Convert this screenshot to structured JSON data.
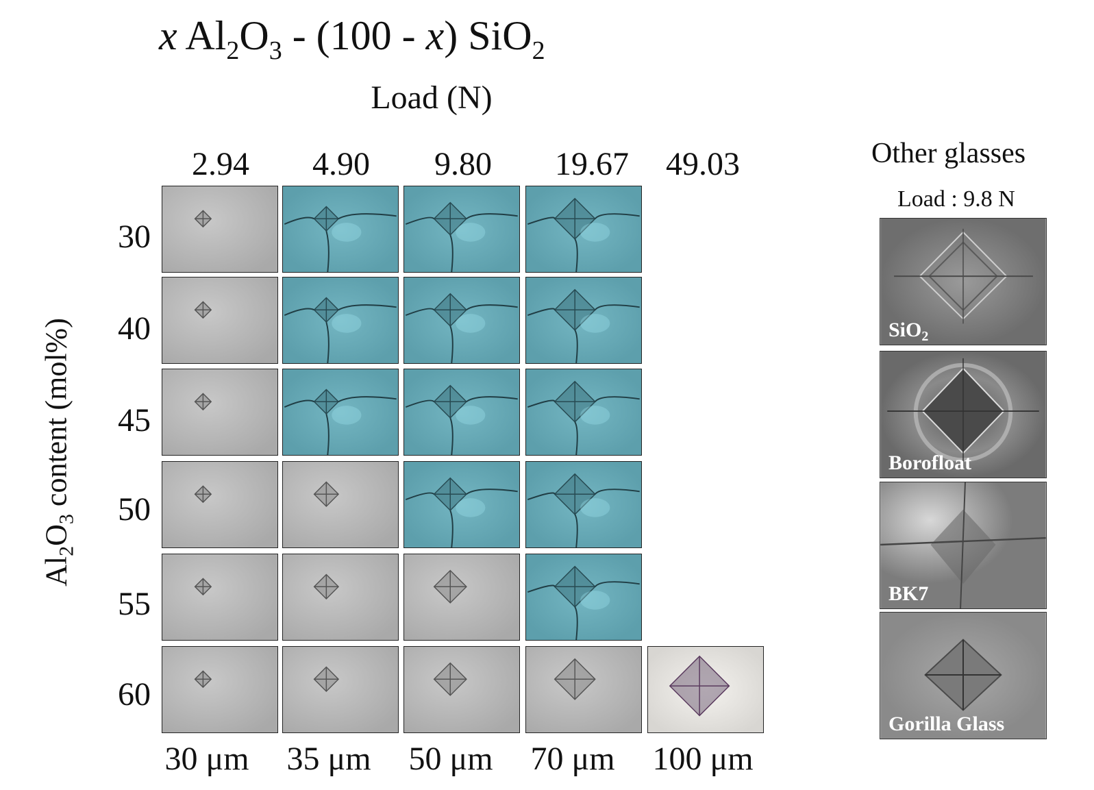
{
  "title": {
    "x": "x",
    "al": "Al",
    "al_sub": "2",
    "o": "O",
    "o_sub": "3",
    "mid": " - (100 - ",
    "x2": "x",
    "end": ") SiO",
    "end_sub": "2"
  },
  "load_axis_title": "Load (N)",
  "loads": [
    "2.94",
    "4.90",
    "9.80",
    "19.67",
    "49.03"
  ],
  "y_axis": {
    "pre": "Al",
    "sub1": "2",
    "mid": "O",
    "sub2": "3",
    "post": " content (mol%)"
  },
  "rows": [
    "30",
    "40",
    "45",
    "50",
    "55",
    "60"
  ],
  "scale_bars": [
    "30 μm",
    "35 μm",
    "50 μm",
    "70 μm",
    "100 μm"
  ],
  "colors": {
    "gray_tile": "#b5b5b5",
    "cyan_tile": "#6aabb7",
    "pale_tile": "#eeece8",
    "side_tile": "#7a7a7a"
  },
  "other": {
    "title": "Other glasses",
    "load": "Load : 9.8 N",
    "glasses": [
      {
        "name": "SiO",
        "sub": "2"
      },
      {
        "name": "Borofloat",
        "sub": ""
      },
      {
        "name": "BK7",
        "sub": ""
      },
      {
        "name": "Gorilla Glass",
        "sub": ""
      }
    ]
  },
  "tile_styles": [
    [
      "gray",
      "cyan",
      "cyan",
      "cyan",
      ""
    ],
    [
      "gray",
      "cyan",
      "cyan",
      "cyan",
      ""
    ],
    [
      "gray",
      "cyan",
      "cyan",
      "cyan",
      ""
    ],
    [
      "gray",
      "gray",
      "cyan",
      "cyan",
      ""
    ],
    [
      "gray",
      "gray",
      "gray",
      "cyan",
      ""
    ],
    [
      "gray",
      "gray",
      "gray",
      "gray",
      "pale"
    ]
  ]
}
